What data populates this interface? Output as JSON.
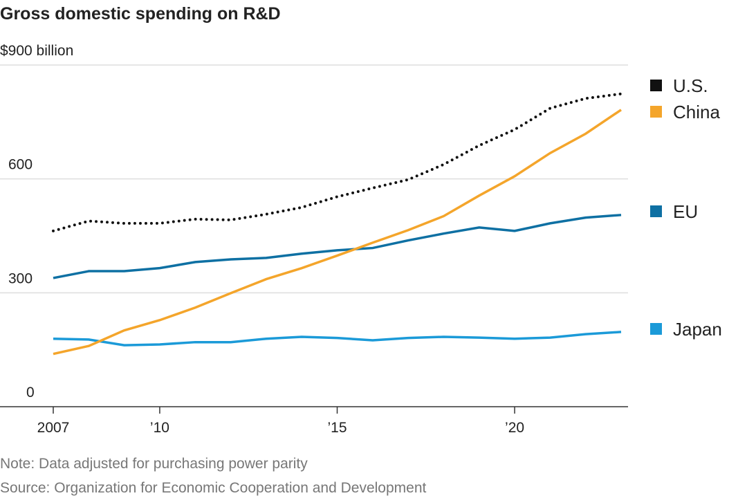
{
  "chart_data": {
    "type": "line",
    "title": "Gross domestic spending on R&D",
    "ylabel": "$900 billion",
    "ylim": [
      0,
      900
    ],
    "yticks": [
      {
        "value": 900,
        "label": "$900 billion"
      },
      {
        "value": 600,
        "label": "600"
      },
      {
        "value": 300,
        "label": "300"
      },
      {
        "value": 0,
        "label": "0"
      }
    ],
    "xticks": [
      {
        "value": 2007,
        "label": "2007"
      },
      {
        "value": 2010,
        "label": "’10"
      },
      {
        "value": 2015,
        "label": "’15"
      },
      {
        "value": 2020,
        "label": "’20"
      }
    ],
    "xlim": [
      2007,
      2023
    ],
    "x": [
      2007,
      2008,
      2009,
      2010,
      2011,
      2012,
      2013,
      2014,
      2015,
      2016,
      2017,
      2018,
      2019,
      2020,
      2021,
      2022,
      2023
    ],
    "series": [
      {
        "name": "U.S.",
        "color": "#111111",
        "style": "dotted",
        "values": [
          463,
          489,
          483,
          483,
          494,
          492,
          507,
          525,
          553,
          576,
          598,
          638,
          688,
          730,
          786,
          812,
          824
        ]
      },
      {
        "name": "China",
        "color": "#f4a52b",
        "style": "solid",
        "values": [
          139,
          160,
          201,
          228,
          261,
          299,
          336,
          365,
          398,
          432,
          465,
          502,
          556,
          607,
          668,
          719,
          782
        ]
      },
      {
        "name": "EU",
        "color": "#0e70a3",
        "style": "solid",
        "values": [
          339,
          357,
          357,
          365,
          381,
          388,
          392,
          403,
          412,
          418,
          438,
          456,
          472,
          463,
          483,
          498,
          505
        ]
      },
      {
        "name": "Japan",
        "color": "#1b9ad8",
        "style": "solid",
        "values": [
          179,
          177,
          162,
          164,
          170,
          170,
          179,
          184,
          181,
          175,
          181,
          184,
          182,
          179,
          182,
          191,
          197
        ]
      }
    ],
    "grid": true,
    "legend_placement": "right",
    "notes": [
      "Note: Data adjusted for purchasing power parity",
      "Source: Organization for Economic Cooperation and Development"
    ]
  }
}
